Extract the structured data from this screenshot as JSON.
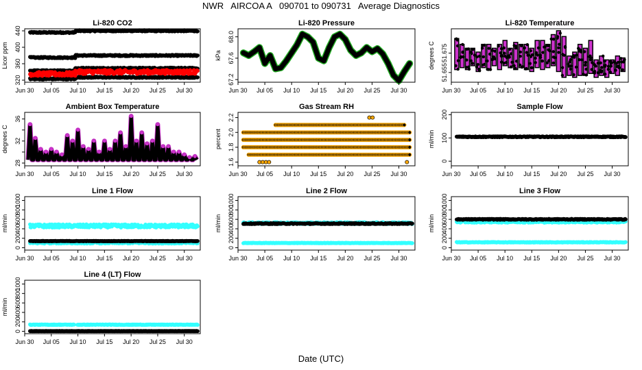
{
  "page": {
    "title": "NWR   AIRCOA A   090701 to 090731   Average Diagnostics",
    "xlabel": "Date (UTC)"
  },
  "colors": {
    "black": "#000000",
    "red": "#ff0000",
    "magenta": "#cc33cc",
    "cyan": "#33ffff",
    "orange": "#ffaa00",
    "green": "#22aa22"
  },
  "chart_data": [
    {
      "type": "scatter",
      "title": "Li-820 CO2",
      "ylabel": "Licor ppm",
      "xlabel": "",
      "x_ticks": [
        "Jun 30",
        "Jul 05",
        "Jul 10",
        "Jul 15",
        "Jul 20",
        "Jul 25",
        "Jul 30"
      ],
      "x_range_days": [
        0,
        33
      ],
      "ylim": [
        315,
        445
      ],
      "y_ticks": [
        320,
        360,
        400,
        440
      ],
      "y_tick_labels": [
        "320",
        "360",
        "400",
        "440"
      ],
      "series": [
        {
          "name": "std-high",
          "color": "black",
          "segments": [
            [
              1,
              9.5,
              436
            ],
            [
              9.5,
              32.5,
              440
            ]
          ],
          "noise": 1.5
        },
        {
          "name": "std-mid",
          "color": "black",
          "segments": [
            [
              1,
              9.5,
              375
            ],
            [
              9.5,
              32.5,
              380
            ]
          ],
          "noise": 1.5
        },
        {
          "name": "std-low2",
          "color": "black",
          "segments": [
            [
              1,
              9.5,
              343
            ],
            [
              9.5,
              32.5,
              349
            ]
          ],
          "noise": 1.5
        },
        {
          "name": "std-low",
          "color": "black",
          "segments": [
            [
              1,
              9.5,
              323
            ],
            [
              9.5,
              32.5,
              327
            ]
          ],
          "noise": 1.5
        },
        {
          "name": "sample",
          "color": "red",
          "segments": [
            [
              1,
              9.5,
              335
            ],
            [
              9.5,
              32.5,
              340
            ]
          ],
          "noise": 5
        }
      ]
    },
    {
      "type": "line",
      "title": "Li-820 Pressure",
      "ylabel": "kPa",
      "xlabel": "",
      "x_ticks": [
        "Jun 30",
        "Jul 05",
        "Jul 10",
        "Jul 15",
        "Jul 20",
        "Jul 25",
        "Jul 30"
      ],
      "x_range_days": [
        0,
        33
      ],
      "ylim": [
        67.15,
        68.15
      ],
      "y_ticks": [
        67.2,
        67.6,
        68.0
      ],
      "y_tick_labels": [
        "67.2",
        "67.6",
        "68.0"
      ],
      "series": [
        {
          "name": "pressure",
          "color": "black",
          "halo": "green",
          "thickness": 0.09,
          "points": [
            [
              1,
              67.7
            ],
            [
              2,
              67.65
            ],
            [
              3,
              67.72
            ],
            [
              4,
              67.8
            ],
            [
              5,
              67.5
            ],
            [
              6,
              67.65
            ],
            [
              7,
              67.4
            ],
            [
              8,
              67.42
            ],
            [
              9,
              67.55
            ],
            [
              10,
              67.7
            ],
            [
              11,
              67.85
            ],
            [
              12,
              68.05
            ],
            [
              13,
              68.0
            ],
            [
              14,
              67.9
            ],
            [
              15,
              67.6
            ],
            [
              16,
              67.55
            ],
            [
              17,
              67.8
            ],
            [
              18,
              68.0
            ],
            [
              19,
              68.05
            ],
            [
              20,
              67.95
            ],
            [
              21,
              67.75
            ],
            [
              22,
              67.65
            ],
            [
              23,
              67.7
            ],
            [
              24,
              67.8
            ],
            [
              25,
              67.72
            ],
            [
              26,
              67.78
            ],
            [
              27,
              67.68
            ],
            [
              28,
              67.5
            ],
            [
              29,
              67.28
            ],
            [
              30,
              67.18
            ],
            [
              31,
              67.35
            ],
            [
              32,
              67.5
            ]
          ]
        }
      ]
    },
    {
      "type": "scatter",
      "title": "Li-820 Temperature",
      "ylabel": "degrees C",
      "xlabel": "",
      "x_ticks": [
        "Jun 30",
        "Jul 05",
        "Jul 10",
        "Jul 15",
        "Jul 20",
        "Jul 25",
        "Jul 30"
      ],
      "x_range_days": [
        0,
        33
      ],
      "ylim": [
        51.645,
        51.7
      ],
      "y_ticks": [
        51.655,
        51.675
      ],
      "y_tick_labels": [
        "51.655",
        "51.675"
      ],
      "series": [
        {
          "name": "temp-range",
          "color": "magenta",
          "outline": "black",
          "bands": [
            [
              1,
              51.658,
              51.69
            ],
            [
              2,
              51.66,
              51.684
            ],
            [
              3,
              51.658,
              51.68
            ],
            [
              4,
              51.662,
              51.68
            ],
            [
              5,
              51.656,
              51.676
            ],
            [
              6,
              51.66,
              51.684
            ],
            [
              7,
              51.658,
              51.684
            ],
            [
              8,
              51.662,
              51.68
            ],
            [
              9,
              51.658,
              51.684
            ],
            [
              10,
              51.662,
              51.688
            ],
            [
              11,
              51.66,
              51.68
            ],
            [
              12,
              51.658,
              51.686
            ],
            [
              13,
              51.66,
              51.684
            ],
            [
              14,
              51.658,
              51.684
            ],
            [
              15,
              51.656,
              51.68
            ],
            [
              16,
              51.66,
              51.688
            ],
            [
              17,
              51.658,
              51.688
            ],
            [
              18,
              51.66,
              51.684
            ],
            [
              19,
              51.662,
              51.694
            ],
            [
              20,
              51.656,
              51.698
            ],
            [
              21,
              51.65,
              51.692
            ],
            [
              22,
              51.652,
              51.672
            ],
            [
              23,
              51.65,
              51.676
            ],
            [
              24,
              51.652,
              51.684
            ],
            [
              25,
              51.652,
              51.68
            ],
            [
              26,
              51.654,
              51.688
            ],
            [
              27,
              51.65,
              51.668
            ],
            [
              28,
              51.652,
              51.672
            ],
            [
              29,
              51.65,
              51.668
            ],
            [
              30,
              51.654,
              51.668
            ],
            [
              31,
              51.652,
              51.672
            ],
            [
              32,
              51.656,
              51.67
            ]
          ]
        }
      ]
    },
    {
      "type": "line",
      "title": "Ambient Box Temperature",
      "ylabel": "degrees C",
      "xlabel": "",
      "x_ticks": [
        "Jun 30",
        "Jul 05",
        "Jul 10",
        "Jul 15",
        "Jul 20",
        "Jul 25",
        "Jul 30"
      ],
      "x_range_days": [
        0,
        33
      ],
      "ylim": [
        27.5,
        37.2
      ],
      "y_ticks": [
        28,
        30,
        32,
        34,
        36
      ],
      "y_tick_labels": [
        "28",
        "",
        "32",
        "",
        "36"
      ],
      "series": [
        {
          "name": "box-temp",
          "color": "black",
          "halo": "magenta",
          "base": 28.6,
          "peaks": [
            [
              1,
              35.0
            ],
            [
              2,
              32.5
            ],
            [
              3,
              30.5
            ],
            [
              4,
              30.0
            ],
            [
              5,
              30.5
            ],
            [
              6,
              30.0
            ],
            [
              7,
              29.5
            ],
            [
              8,
              33.0
            ],
            [
              9,
              32.0
            ],
            [
              10,
              34.0
            ],
            [
              11,
              31.0
            ],
            [
              12,
              30.5
            ],
            [
              13,
              32.0
            ],
            [
              14,
              30.0
            ],
            [
              15,
              32.0
            ],
            [
              16,
              30.5
            ],
            [
              17,
              32.0
            ],
            [
              18,
              33.5
            ],
            [
              19,
              31.0
            ],
            [
              20,
              36.5
            ],
            [
              21,
              32.0
            ],
            [
              22,
              33.5
            ],
            [
              23,
              31.5
            ],
            [
              24,
              32.0
            ],
            [
              25,
              35.0
            ],
            [
              26,
              31.0
            ],
            [
              27,
              31.0
            ],
            [
              28,
              30.0
            ],
            [
              29,
              30.0
            ],
            [
              30,
              29.5
            ],
            [
              31,
              29.0
            ],
            [
              32,
              29.2
            ]
          ]
        }
      ]
    },
    {
      "type": "scatter",
      "title": "Gas Stream RH",
      "ylabel": "percent",
      "xlabel": "",
      "x_ticks": [
        "Jun 30",
        "Jul 05",
        "Jul 10",
        "Jul 15",
        "Jul 20",
        "Jul 25",
        "Jul 30"
      ],
      "x_range_days": [
        0,
        33
      ],
      "ylim": [
        1.55,
        2.27
      ],
      "y_ticks": [
        1.6,
        1.8,
        2.0,
        2.2
      ],
      "y_tick_labels": [
        "1.6",
        "1.8",
        "2.0",
        "2.2"
      ],
      "series": [
        {
          "name": "rh-levels",
          "color": "black",
          "outline": "orange",
          "levels": [
            [
              2.1,
              7,
              31
            ],
            [
              2.0,
              1,
              32
            ],
            [
              1.9,
              1,
              32
            ],
            [
              1.8,
              1,
              32
            ],
            [
              1.7,
              2,
              32
            ]
          ],
          "sparse": [
            [
              1.6,
              4,
              6
            ],
            [
              1.6,
              31.5,
              32
            ],
            [
              2.2,
              24.5,
              25.2
            ]
          ]
        }
      ]
    },
    {
      "type": "scatter",
      "title": "Sample Flow",
      "ylabel": "ml/min",
      "xlabel": "",
      "x_ticks": [
        "Jun 30",
        "Jul 05",
        "Jul 10",
        "Jul 15",
        "Jul 20",
        "Jul 25",
        "Jul 30"
      ],
      "x_range_days": [
        0,
        33
      ],
      "ylim": [
        -20,
        210
      ],
      "y_ticks": [
        0,
        100,
        200
      ],
      "y_tick_labels": [
        "0",
        "100",
        "200"
      ],
      "series": [
        {
          "name": "sample-flow",
          "color": "black",
          "segments": [
            [
              1,
              32.5,
              105
            ]
          ],
          "noise": 2
        }
      ]
    },
    {
      "type": "scatter",
      "title": "Line 1 Flow",
      "ylabel": "ml/min",
      "xlabel": "",
      "x_ticks": [
        "Jun 30",
        "Jul 05",
        "Jul 10",
        "Jul 15",
        "Jul 20",
        "Jul 25",
        "Jul 30"
      ],
      "x_range_days": [
        0,
        33
      ],
      "ylim": [
        -50,
        1080
      ],
      "y_ticks": [
        0,
        200,
        400,
        600,
        800,
        1000
      ],
      "y_tick_labels": [
        "0",
        "200",
        "400",
        "600",
        "800",
        "1000"
      ],
      "series": [
        {
          "name": "line1-high",
          "color": "cyan",
          "segments": [
            [
              1,
              32.5,
              460
            ]
          ],
          "noise": 35
        },
        {
          "name": "line1-low",
          "color": "cyan",
          "segments": [
            [
              1,
              32.5,
              105
            ]
          ],
          "noise": 18
        },
        {
          "name": "line1-main",
          "color": "black",
          "segments": [
            [
              1,
              32.5,
              140
            ]
          ],
          "noise": 4
        }
      ]
    },
    {
      "type": "scatter",
      "title": "Line 2 Flow",
      "ylabel": "ml/min",
      "xlabel": "",
      "x_ticks": [
        "Jun 30",
        "Jul 05",
        "Jul 10",
        "Jul 15",
        "Jul 20",
        "Jul 25",
        "Jul 30"
      ],
      "x_range_days": [
        0,
        33
      ],
      "ylim": [
        -50,
        1080
      ],
      "y_ticks": [
        0,
        200,
        400,
        600,
        800,
        1000
      ],
      "y_tick_labels": [
        "0",
        "200",
        "400",
        "600",
        "800",
        "1000"
      ],
      "series": [
        {
          "name": "line2-cyan-high",
          "color": "cyan",
          "segments": [
            [
              1,
              32.5,
              520
            ]
          ],
          "noise": 20
        },
        {
          "name": "line2-cyan-low",
          "color": "cyan",
          "segments": [
            [
              1,
              32.5,
              100
            ]
          ],
          "noise": 5
        },
        {
          "name": "line2-main",
          "color": "black",
          "segments": [
            [
              1,
              32.5,
              510
            ]
          ],
          "noise": 10
        }
      ]
    },
    {
      "type": "scatter",
      "title": "Line 3 Flow",
      "ylabel": "ml/min",
      "xlabel": "",
      "x_ticks": [
        "Jun 30",
        "Jul 05",
        "Jul 10",
        "Jul 15",
        "Jul 20",
        "Jul 25",
        "Jul 30"
      ],
      "x_range_days": [
        0,
        33
      ],
      "ylim": [
        -50,
        1080
      ],
      "y_ticks": [
        0,
        200,
        400,
        600,
        800,
        1000
      ],
      "y_tick_labels": [
        "0",
        "200",
        "400",
        "600",
        "800",
        "1000"
      ],
      "series": [
        {
          "name": "line3-cyan-high",
          "color": "cyan",
          "segments": [
            [
              1,
              32.5,
              550
            ]
          ],
          "noise": 20
        },
        {
          "name": "line3-cyan-low",
          "color": "cyan",
          "segments": [
            [
              1,
              32.5,
              115
            ]
          ],
          "noise": 6
        },
        {
          "name": "line3-main",
          "color": "black",
          "segments": [
            [
              1,
              32.5,
              600
            ]
          ],
          "noise": 10
        }
      ]
    },
    {
      "type": "scatter",
      "title": "Line 4 (LT) Flow",
      "ylabel": "ml/min",
      "xlabel": "",
      "x_ticks": [
        "Jun 30",
        "Jul 05",
        "Jul 10",
        "Jul 15",
        "Jul 20",
        "Jul 25",
        "Jul 30"
      ],
      "x_range_days": [
        0,
        33
      ],
      "ylim": [
        -50,
        1080
      ],
      "y_ticks": [
        0,
        200,
        400,
        600,
        800,
        1000
      ],
      "y_tick_labels": [
        "0",
        "200",
        "400",
        "600",
        "800",
        "1000"
      ],
      "series": [
        {
          "name": "line4-cyan",
          "color": "cyan",
          "segments": [
            [
              1,
              9.3,
              140
            ],
            [
              9.9,
              32.5,
              140
            ]
          ],
          "noise": 6
        },
        {
          "name": "line4-main",
          "color": "black",
          "segments": [
            [
              1,
              32.5,
              5
            ]
          ],
          "noise": 2
        }
      ]
    }
  ]
}
